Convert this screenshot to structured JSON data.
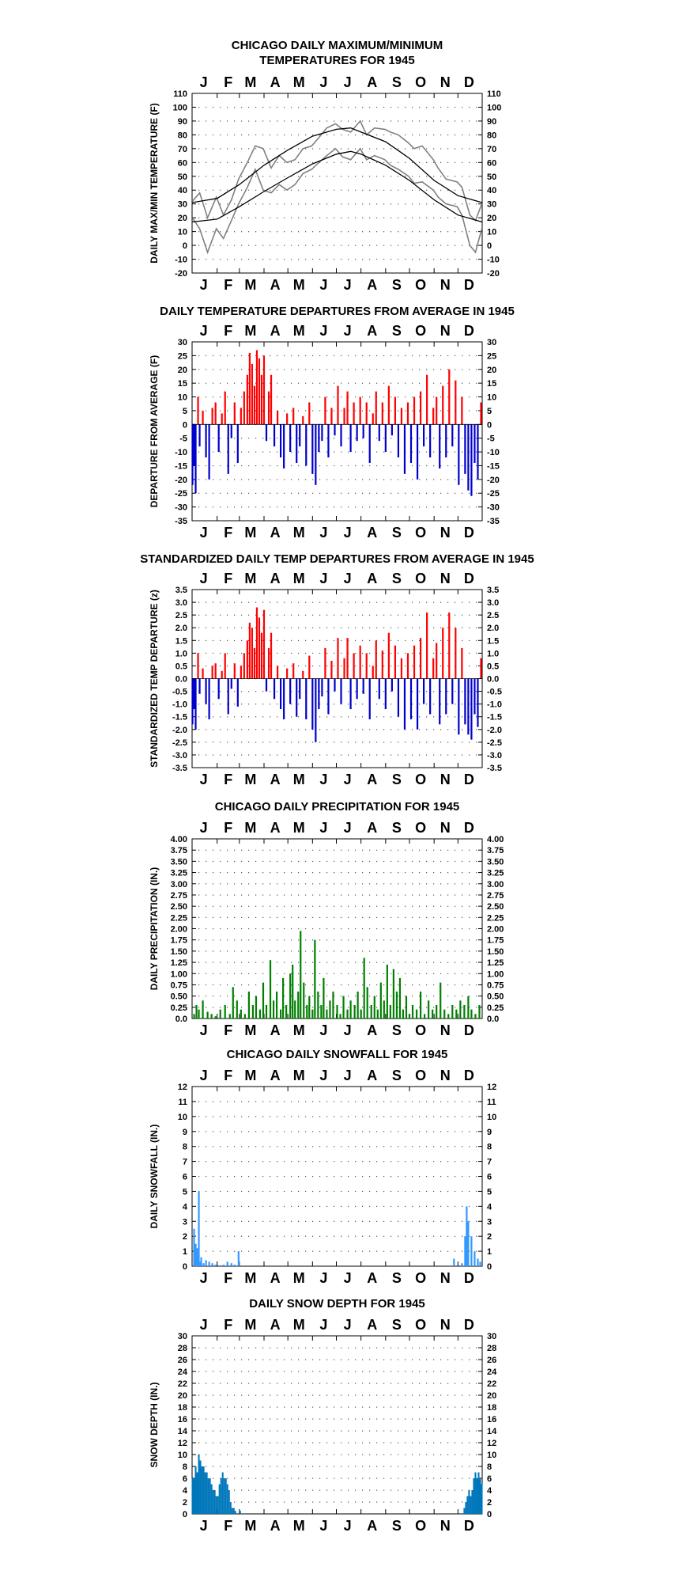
{
  "page": {
    "background": "#ffffff"
  },
  "months": [
    "J",
    "F",
    "M",
    "A",
    "M",
    "J",
    "J",
    "A",
    "S",
    "O",
    "N",
    "D"
  ],
  "chart_data": [
    {
      "type": "line",
      "title_lines": [
        "CHICAGO DAILY MAXIMUM/MINIMUM",
        "TEMPERATURES FOR 1945"
      ],
      "ylabel": "DAILY MAX/MIN TEMPERATURE (F)",
      "xlabel": "",
      "ylim": [
        -20,
        110
      ],
      "yticks": [
        -20,
        -10,
        0,
        10,
        20,
        30,
        40,
        50,
        60,
        70,
        80,
        90,
        100,
        110
      ],
      "grid": true,
      "series_color": "#808080",
      "normal_color": "#000000",
      "series": [
        {
          "name": "",
          "role": "max",
          "x": [
            1,
            10,
            20,
            31,
            40,
            50,
            59,
            70,
            80,
            90,
            100,
            110,
            120,
            130,
            140,
            151,
            160,
            170,
            181,
            190,
            200,
            212,
            220,
            230,
            243,
            250,
            260,
            273,
            280,
            290,
            304,
            310,
            320,
            334,
            340,
            350,
            357,
            365
          ],
          "values": [
            32,
            38,
            20,
            35,
            22,
            33,
            48,
            60,
            72,
            70,
            56,
            65,
            60,
            62,
            70,
            72,
            78,
            85,
            88,
            84,
            82,
            90,
            80,
            85,
            84,
            82,
            80,
            74,
            70,
            72,
            62,
            56,
            48,
            46,
            42,
            22,
            18,
            30
          ]
        },
        {
          "name": "",
          "role": "min",
          "x": [
            1,
            10,
            20,
            31,
            40,
            50,
            59,
            70,
            80,
            90,
            100,
            110,
            120,
            130,
            140,
            151,
            160,
            170,
            181,
            190,
            200,
            212,
            220,
            230,
            243,
            250,
            260,
            273,
            280,
            290,
            304,
            310,
            320,
            334,
            340,
            350,
            357,
            365
          ],
          "values": [
            20,
            12,
            -5,
            12,
            5,
            18,
            30,
            42,
            55,
            40,
            38,
            44,
            40,
            44,
            52,
            55,
            60,
            65,
            70,
            64,
            62,
            70,
            62,
            65,
            62,
            58,
            55,
            50,
            45,
            46,
            40,
            35,
            30,
            28,
            22,
            0,
            -5,
            12
          ]
        },
        {
          "name": "",
          "role": "normal_high",
          "x": [
            1,
            32,
            60,
            91,
            121,
            152,
            182,
            200,
            213,
            244,
            274,
            305,
            335,
            365
          ],
          "values": [
            31,
            34,
            44,
            58,
            69,
            79,
            84,
            85,
            82,
            75,
            63,
            47,
            36,
            31
          ]
        },
        {
          "name": "",
          "role": "normal_low",
          "x": [
            1,
            32,
            60,
            91,
            121,
            152,
            182,
            200,
            213,
            244,
            274,
            305,
            335,
            365
          ],
          "values": [
            17,
            19,
            28,
            39,
            49,
            59,
            66,
            68,
            66,
            58,
            47,
            33,
            22,
            17
          ]
        }
      ]
    },
    {
      "type": "bar",
      "title_lines": [
        "DAILY TEMPERATURE DEPARTURES FROM AVERAGE IN 1945"
      ],
      "ylabel": "DEPARTURE FROM AVERAGE (F)",
      "xlabel": "",
      "ylim": [
        -35,
        30
      ],
      "yticks": [
        -35,
        -30,
        -25,
        -20,
        -15,
        -10,
        -5,
        0,
        5,
        10,
        15,
        20,
        25,
        30
      ],
      "grid": true,
      "pos_color": "#ff0000",
      "neg_color": "#0000cc",
      "x": [
        1,
        3,
        5,
        8,
        10,
        14,
        18,
        22,
        26,
        30,
        34,
        38,
        42,
        46,
        50,
        54,
        58,
        62,
        66,
        70,
        73,
        76,
        79,
        82,
        85,
        88,
        91,
        94,
        97,
        100,
        104,
        108,
        112,
        116,
        120,
        124,
        128,
        132,
        136,
        140,
        144,
        148,
        152,
        156,
        160,
        164,
        168,
        172,
        176,
        180,
        184,
        188,
        192,
        196,
        200,
        204,
        208,
        212,
        216,
        220,
        224,
        228,
        232,
        236,
        240,
        244,
        248,
        252,
        256,
        260,
        264,
        268,
        272,
        276,
        280,
        284,
        288,
        292,
        296,
        300,
        304,
        308,
        312,
        316,
        320,
        324,
        328,
        332,
        336,
        340,
        344,
        348,
        352,
        356,
        360,
        364
      ],
      "values": [
        -22,
        -15,
        -25,
        10,
        -8,
        5,
        -12,
        -20,
        6,
        8,
        -10,
        4,
        12,
        -18,
        -5,
        8,
        -14,
        6,
        12,
        18,
        26,
        22,
        14,
        27,
        24,
        18,
        25,
        -6,
        12,
        18,
        -8,
        5,
        -12,
        -16,
        4,
        -10,
        6,
        -14,
        -8,
        3,
        -15,
        8,
        -18,
        -22,
        -10,
        -6,
        10,
        -12,
        6,
        -4,
        14,
        -8,
        6,
        12,
        -10,
        8,
        -6,
        10,
        -5,
        8,
        -14,
        4,
        12,
        -6,
        8,
        -10,
        14,
        -4,
        10,
        -12,
        6,
        -18,
        8,
        -14,
        10,
        -20,
        12,
        -8,
        18,
        -12,
        6,
        10,
        -16,
        14,
        -12,
        20,
        -8,
        16,
        -22,
        10,
        -18,
        -24,
        -26,
        -14,
        -20,
        8
      ],
      "value_mode": "sparse"
    },
    {
      "type": "bar",
      "title_lines": [
        "STANDARDIZED DAILY TEMP DEPARTURES FROM AVERAGE IN 1945"
      ],
      "ylabel": "STANDARDIZED TEMP DEPARTURE (z)",
      "xlabel": "",
      "ylim": [
        -3.5,
        3.5
      ],
      "yticks": [
        -3.5,
        -3.0,
        -2.5,
        -2.0,
        -1.5,
        -1.0,
        -0.5,
        0.0,
        0.5,
        1.0,
        1.5,
        2.0,
        2.5,
        3.0,
        3.5
      ],
      "ytick_labels": [
        "-3.5",
        "-3.0",
        "-2.5",
        "-2.0",
        "-1.5",
        "-1.0",
        "-0.5",
        "0.0",
        "0.5",
        "1.0",
        "1.5",
        "2.0",
        "2.5",
        "3.0",
        "3.5"
      ],
      "grid": true,
      "pos_color": "#ff0000",
      "neg_color": "#0000cc",
      "x": [
        1,
        3,
        5,
        8,
        10,
        14,
        18,
        22,
        26,
        30,
        34,
        38,
        42,
        46,
        50,
        54,
        58,
        62,
        66,
        70,
        73,
        76,
        79,
        82,
        85,
        88,
        91,
        94,
        97,
        100,
        104,
        108,
        112,
        116,
        120,
        124,
        128,
        132,
        136,
        140,
        144,
        148,
        152,
        156,
        160,
        164,
        168,
        172,
        176,
        180,
        184,
        188,
        192,
        196,
        200,
        204,
        208,
        212,
        216,
        220,
        224,
        228,
        232,
        236,
        240,
        244,
        248,
        252,
        256,
        260,
        264,
        268,
        272,
        276,
        280,
        284,
        288,
        292,
        296,
        300,
        304,
        308,
        312,
        316,
        320,
        324,
        328,
        332,
        336,
        340,
        344,
        348,
        352,
        356,
        360,
        364
      ],
      "values": [
        -1.8,
        -1.2,
        -2.0,
        1.0,
        -0.6,
        0.4,
        -1.0,
        -1.6,
        0.5,
        0.6,
        -0.8,
        0.3,
        1.0,
        -1.4,
        -0.4,
        0.6,
        -1.1,
        0.5,
        1.0,
        1.5,
        2.2,
        2.0,
        1.2,
        2.8,
        2.4,
        1.8,
        2.7,
        -0.5,
        1.2,
        1.8,
        -0.8,
        0.5,
        -1.2,
        -1.6,
        0.4,
        -1.0,
        0.6,
        -1.5,
        -0.8,
        0.3,
        -1.6,
        0.9,
        -2.0,
        -2.5,
        -1.2,
        -0.7,
        1.2,
        -1.4,
        0.7,
        -0.5,
        1.6,
        -1.0,
        0.8,
        1.6,
        -1.2,
        1.0,
        -0.8,
        1.3,
        -0.6,
        1.0,
        -1.6,
        0.5,
        1.5,
        -0.8,
        1.1,
        -1.2,
        1.8,
        -0.5,
        1.3,
        -1.5,
        0.8,
        -2.0,
        1.0,
        -1.6,
        1.3,
        -2.0,
        1.6,
        -1.0,
        2.6,
        -1.4,
        0.8,
        1.4,
        -1.8,
        2.0,
        -1.4,
        2.6,
        -1.0,
        2.0,
        -2.2,
        1.2,
        -1.8,
        -2.2,
        -2.4,
        -1.4,
        -1.9,
        0.8
      ]
    },
    {
      "type": "bar",
      "title_lines": [
        "CHICAGO DAILY PRECIPITATION FOR 1945"
      ],
      "ylabel": "DAILY PRECIPITATION (IN.)",
      "xlabel": "",
      "ylim": [
        0,
        4
      ],
      "yticks": [
        0,
        0.25,
        0.5,
        0.75,
        1.0,
        1.25,
        1.5,
        1.75,
        2.0,
        2.25,
        2.5,
        2.75,
        3.0,
        3.25,
        3.5,
        3.75,
        4.0
      ],
      "ytick_labels": [
        "0.0",
        "0.25",
        "0.50",
        "0.75",
        "1.00",
        "1.25",
        "1.50",
        "1.75",
        "2.00",
        "2.25",
        "2.50",
        "2.75",
        "3.00",
        "3.25",
        "3.50",
        "3.75",
        "4.00"
      ],
      "grid": true,
      "bar_color": "#008000",
      "x": [
        3,
        6,
        9,
        14,
        20,
        25,
        30,
        36,
        42,
        48,
        52,
        57,
        62,
        67,
        72,
        77,
        81,
        86,
        90,
        94,
        99,
        103,
        107,
        112,
        115,
        119,
        124,
        127,
        130,
        134,
        137,
        141,
        145,
        148,
        152,
        155,
        159,
        163,
        166,
        170,
        174,
        178,
        183,
        187,
        191,
        196,
        200,
        205,
        209,
        213,
        217,
        221,
        226,
        230,
        234,
        238,
        242,
        246,
        250,
        254,
        258,
        262,
        266,
        270,
        274,
        278,
        283,
        288,
        293,
        298,
        303,
        308,
        313,
        318,
        323,
        328,
        333,
        338,
        343,
        348,
        352,
        357,
        362
      ],
      "values": [
        0.1,
        0.3,
        0.2,
        0.4,
        0.15,
        0.1,
        0.05,
        0.2,
        0.3,
        0.1,
        0.7,
        0.4,
        0.2,
        0.1,
        0.6,
        0.3,
        0.5,
        0.2,
        0.8,
        0.3,
        1.3,
        0.4,
        0.6,
        0.2,
        0.9,
        0.3,
        1.0,
        1.2,
        0.4,
        0.6,
        1.95,
        0.8,
        0.3,
        0.5,
        0.2,
        1.75,
        0.6,
        0.3,
        0.9,
        0.2,
        0.4,
        0.6,
        0.3,
        0.1,
        0.5,
        0.2,
        0.4,
        0.3,
        0.6,
        0.2,
        1.35,
        0.7,
        0.3,
        0.5,
        0.2,
        0.8,
        0.4,
        1.2,
        0.3,
        1.1,
        0.6,
        0.9,
        0.2,
        0.5,
        0.1,
        0.3,
        0.2,
        0.6,
        0.1,
        0.4,
        0.2,
        0.3,
        0.8,
        0.2,
        0.1,
        0.3,
        0.2,
        0.4,
        0.3,
        0.5,
        0.2,
        0.1,
        0.3
      ]
    },
    {
      "type": "bar",
      "title_lines": [
        "CHICAGO DAILY SNOWFALL FOR 1945"
      ],
      "ylabel": "DAILY SNOWFALL (IN.)",
      "xlabel": "",
      "ylim": [
        0,
        12
      ],
      "yticks": [
        0,
        1,
        2,
        3,
        4,
        5,
        6,
        7,
        8,
        9,
        10,
        11,
        12
      ],
      "grid": true,
      "bar_color": "#3399ff",
      "x": [
        3,
        4,
        5,
        6,
        7,
        9,
        10,
        12,
        15,
        18,
        22,
        26,
        30,
        40,
        45,
        50,
        54,
        59,
        330,
        340,
        344,
        346,
        348,
        352,
        356,
        360,
        363
      ],
      "values": [
        2.5,
        1.0,
        1.5,
        0.5,
        1.2,
        5.0,
        0.3,
        0.6,
        0.2,
        0.4,
        0.3,
        0.2,
        0.1,
        0.1,
        0.3,
        0.2,
        0.1,
        1.0,
        0.5,
        0.2,
        2.0,
        4.0,
        3.0,
        2.0,
        1.0,
        0.5,
        0.3
      ]
    },
    {
      "type": "area",
      "title_lines": [
        "DAILY SNOW DEPTH FOR 1945"
      ],
      "ylabel": "SNOW DEPTH (IN.)",
      "xlabel": "",
      "ylim": [
        0,
        30
      ],
      "yticks": [
        0,
        2,
        4,
        6,
        8,
        10,
        12,
        14,
        16,
        18,
        20,
        22,
        24,
        26,
        28,
        30
      ],
      "grid": true,
      "bar_color": "#0077bb",
      "x": [
        1,
        3,
        5,
        7,
        9,
        11,
        13,
        15,
        17,
        19,
        21,
        23,
        25,
        27,
        29,
        31,
        33,
        35,
        37,
        39,
        41,
        43,
        45,
        47,
        49,
        51,
        53,
        55,
        57,
        59,
        61,
        63,
        343,
        345,
        347,
        349,
        351,
        353,
        355,
        357,
        359,
        361,
        363,
        365
      ],
      "values": [
        6,
        6,
        8,
        7,
        10,
        9,
        8,
        8,
        7,
        7,
        6,
        6,
        5,
        4,
        4,
        3,
        3,
        5,
        6,
        7,
        6,
        6,
        5,
        4,
        2,
        1,
        1,
        0.5,
        0,
        0,
        0.5,
        0,
        1,
        2,
        3,
        4,
        3,
        4,
        6,
        7,
        6,
        7,
        6,
        5
      ]
    }
  ]
}
